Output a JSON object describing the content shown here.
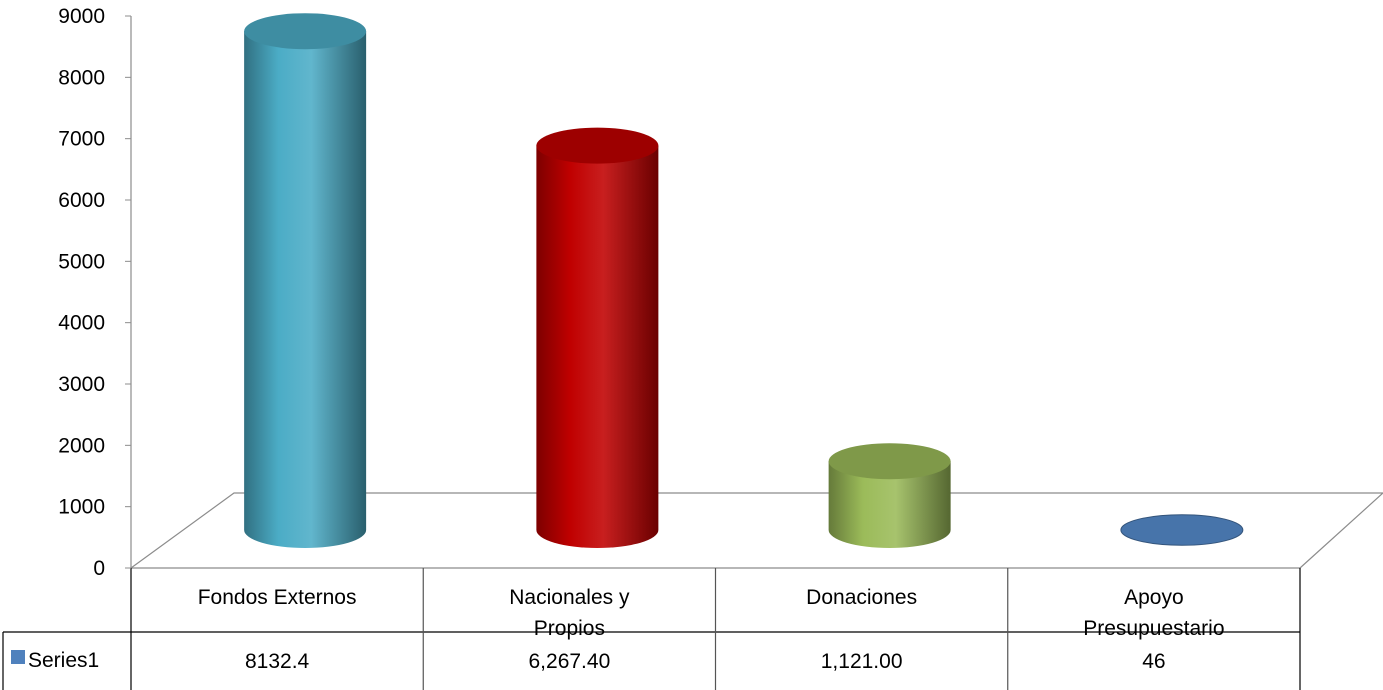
{
  "chart_data": {
    "type": "bar",
    "subtype": "3d-cylinder",
    "title": "",
    "xlabel": "",
    "ylabel": "",
    "ylim": [
      0,
      9000
    ],
    "y_ticks": [
      0,
      1000,
      2000,
      3000,
      4000,
      5000,
      6000,
      7000,
      8000,
      9000
    ],
    "y_tick_labels": [
      "0",
      "1000",
      "2000",
      "3000",
      "4000",
      "5000",
      "6000",
      "7000",
      "8000",
      "9000"
    ],
    "grid": false,
    "legend": "data-table-left",
    "categories": [
      [
        "Fondos Externos"
      ],
      [
        "Nacionales y",
        "Propios"
      ],
      [
        "Donaciones"
      ],
      [
        "Apoyo",
        "Presupuestario"
      ]
    ],
    "series": [
      {
        "name": "Series1",
        "legend_color": "#4F81BD",
        "values": [
          8132.4,
          6267.4,
          1121.0,
          46
        ],
        "value_labels": [
          "8132.4",
          "6,267.40",
          "1,121.00",
          "46"
        ],
        "point_colors": [
          "#4BACC6",
          "#C00000",
          "#9BBB59",
          "#4F81BD"
        ]
      }
    ]
  }
}
